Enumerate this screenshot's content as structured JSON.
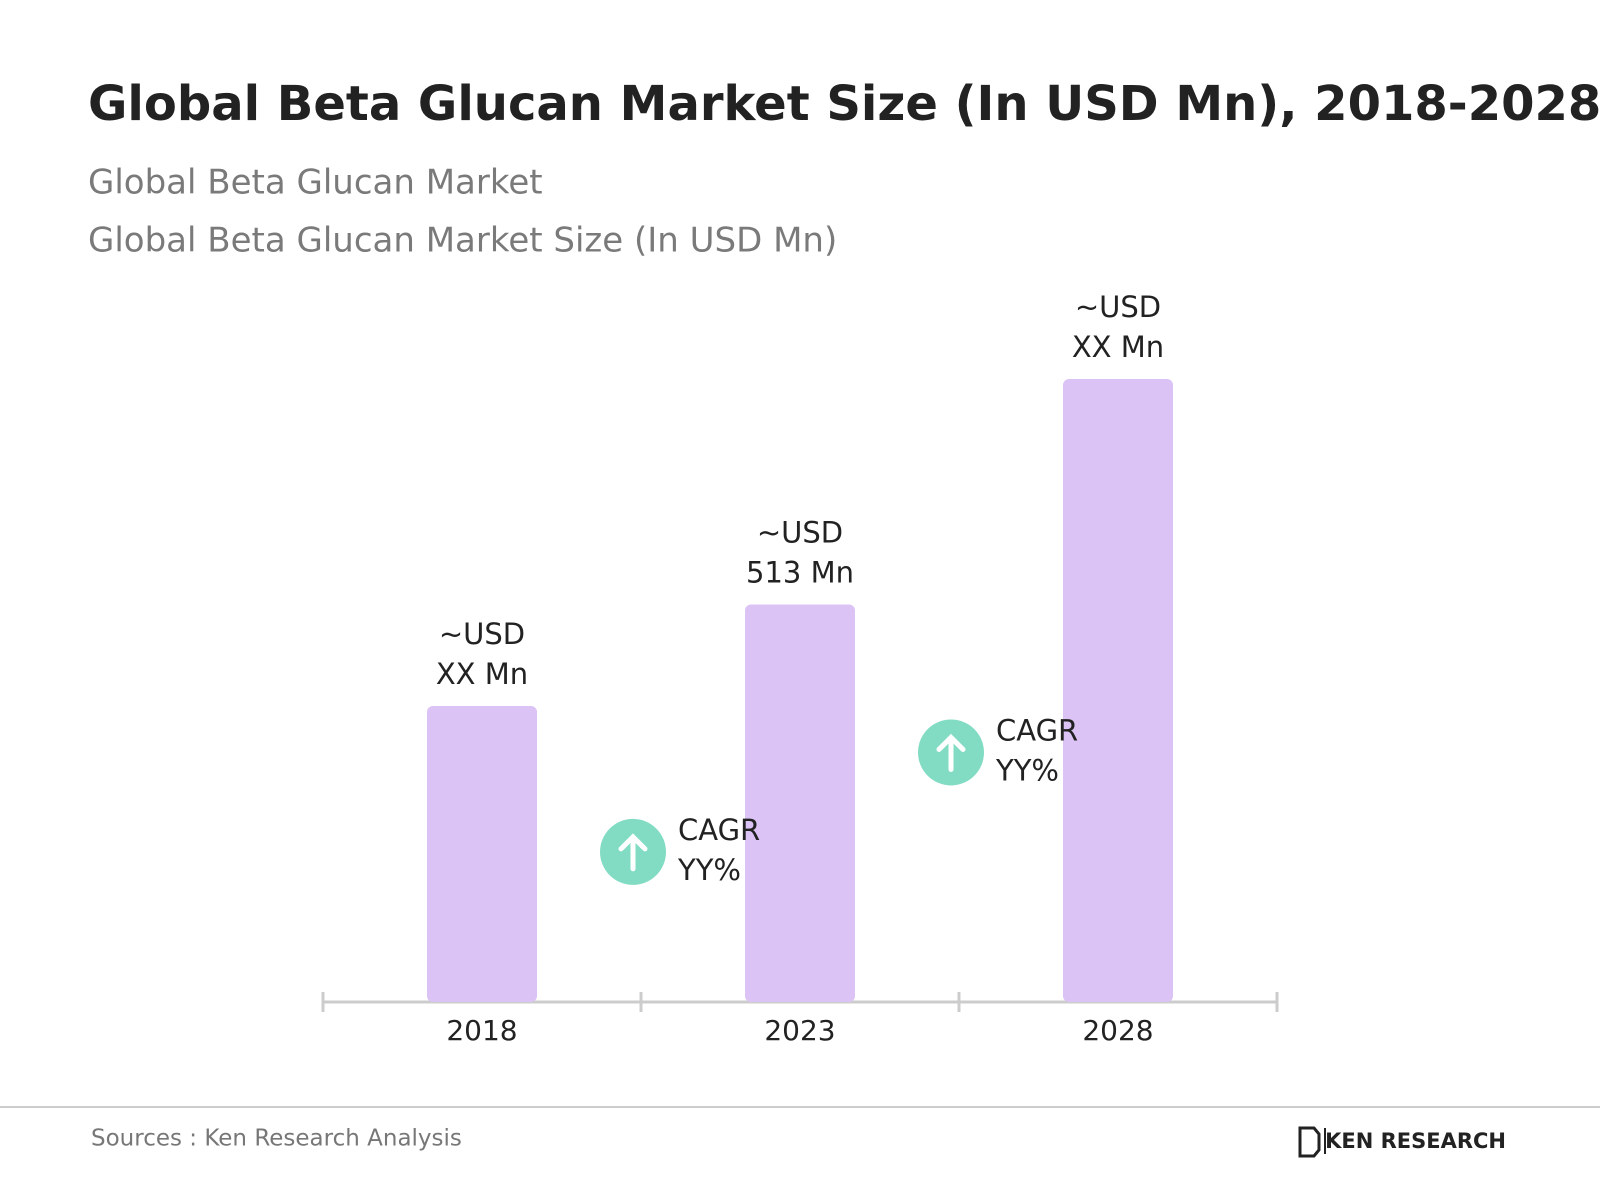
{
  "chart_data": {
    "type": "bar",
    "title": "Global Beta Glucan Market Size (In USD Mn), 2018-2028",
    "subtitles": [
      "Global Beta Glucan Market",
      "Global Beta Glucan Market Size (In USD Mn)"
    ],
    "categories": [
      "2018",
      "2023",
      "2028"
    ],
    "values": [
      382,
      513,
      804
    ],
    "value_labels": [
      [
        "~USD",
        "XX Mn"
      ],
      [
        "~USD",
        "513 Mn"
      ],
      [
        "~USD",
        "XX Mn"
      ]
    ],
    "color": "#dcc3f5",
    "annotations": [
      [
        "CAGR",
        "YY%"
      ],
      [
        "CAGR",
        "YY%"
      ]
    ],
    "annotation_color": "#82dcc3",
    "source": "Sources : Ken Research Analysis",
    "brand": "KEN RESEARCH"
  }
}
